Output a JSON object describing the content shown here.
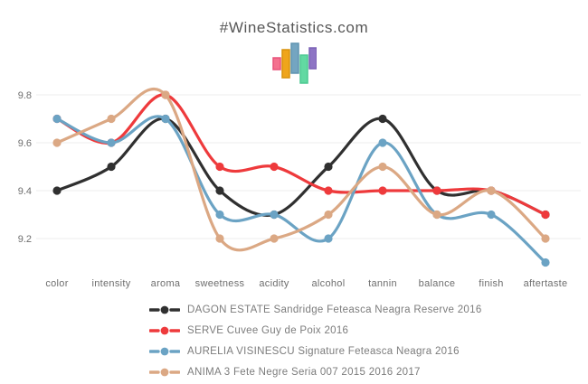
{
  "page": {
    "title": "#WineStatistics.com"
  },
  "logo": {
    "name": "bar-chart-logo",
    "bar_colors": [
      {
        "fill": "#f4718f",
        "border": "#e8527a"
      },
      {
        "fill": "#efa51b",
        "border": "#d8920a"
      },
      {
        "fill": "#74a5c1",
        "border": "#5e93b0"
      },
      {
        "fill": "#62d9a2",
        "border": "#4cc991"
      },
      {
        "fill": "#8d74c4",
        "border": "#7a60b5"
      }
    ]
  },
  "chart_data": {
    "type": "line",
    "title": "#WineStatistics.com",
    "categories": [
      "color",
      "intensity",
      "aroma",
      "sweetness",
      "acidity",
      "alcohol",
      "tannin",
      "balance",
      "finish",
      "aftertaste"
    ],
    "series": [
      {
        "name": "DAGON ESTATE Sandridge Feteasca Neagra Reserve 2016",
        "color": "#303030",
        "values": [
          9.4,
          9.5,
          9.7,
          9.4,
          9.3,
          9.5,
          9.7,
          9.4,
          9.4,
          9.3
        ]
      },
      {
        "name": "SERVE Cuvee Guy de Poix 2016",
        "color": "#ee3a3c",
        "values": [
          9.7,
          9.6,
          9.8,
          9.5,
          9.5,
          9.4,
          9.4,
          9.4,
          9.4,
          9.3
        ]
      },
      {
        "name": "AURELIA VISINESCU Signature Feteasca Neagra 2016",
        "color": "#6ba3c4",
        "values": [
          9.7,
          9.6,
          9.7,
          9.3,
          9.3,
          9.2,
          9.6,
          9.3,
          9.3,
          9.1
        ]
      },
      {
        "name": "ANIMA 3 Fete Negre Seria 007 2015 2016 2017",
        "color": "#dba884",
        "values": [
          9.6,
          9.7,
          9.8,
          9.2,
          9.2,
          9.3,
          9.5,
          9.3,
          9.4,
          9.2
        ]
      }
    ],
    "y_ticks": [
      9.8,
      9.6,
      9.4,
      9.2
    ],
    "ylim": [
      9.0,
      9.9
    ],
    "xlabel": "",
    "ylabel": "",
    "grid": true,
    "grid_color": "#ededed",
    "legend_position": "bottom"
  }
}
